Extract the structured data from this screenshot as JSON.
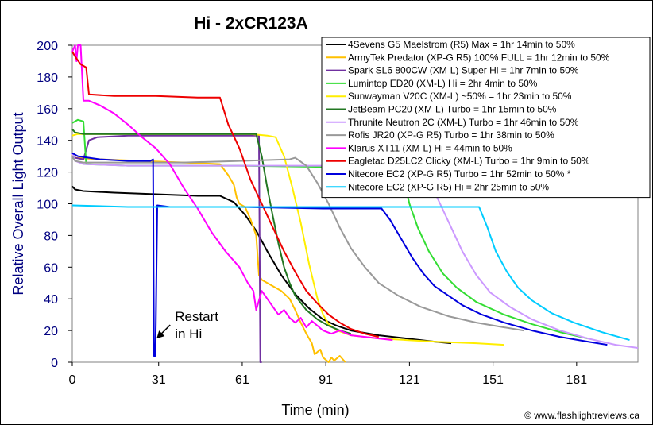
{
  "chart_data": {
    "type": "line",
    "title": "Hi - 2xCR123A",
    "xlabel": "Time (min)",
    "ylabel": "Relative Overall Light Output",
    "xlim": [
      0,
      203
    ],
    "ylim": [
      0,
      200
    ],
    "xticks": [
      0,
      31,
      61,
      91,
      121,
      151,
      181
    ],
    "yticks": [
      0,
      20,
      40,
      60,
      80,
      100,
      120,
      140,
      160,
      180,
      200
    ],
    "grid": false,
    "legend_position": "top-right",
    "annotation": {
      "text_line1": "Restart",
      "text_line2": "in Hi",
      "points_to": [
        30,
        15
      ]
    },
    "credit": "© www.flashlightreviews.ca",
    "series": [
      {
        "name": "4Sevens G5 Maelstrom (R5) Max = 1hr 14min to 50%",
        "color": "#000000",
        "points": [
          [
            0,
            111
          ],
          [
            1,
            109
          ],
          [
            4,
            108
          ],
          [
            15,
            107
          ],
          [
            30,
            106
          ],
          [
            45,
            105
          ],
          [
            53,
            105
          ],
          [
            58,
            101
          ],
          [
            62,
            93
          ],
          [
            66,
            83
          ],
          [
            70,
            70
          ],
          [
            75,
            55
          ],
          [
            80,
            43
          ],
          [
            85,
            34
          ],
          [
            90,
            27
          ],
          [
            95,
            23
          ],
          [
            100,
            20
          ],
          [
            110,
            17
          ],
          [
            120,
            15
          ],
          [
            130,
            13
          ],
          [
            136,
            12
          ]
        ]
      },
      {
        "name": "ArmyTek Predator (XP-G R5) 100% FULL = 1hr 12min to 50%",
        "color": "#ffc000",
        "points": [
          [
            0,
            131
          ],
          [
            1,
            129
          ],
          [
            10,
            128
          ],
          [
            25,
            127
          ],
          [
            40,
            126
          ],
          [
            53,
            125
          ],
          [
            56,
            118
          ],
          [
            58,
            112
          ],
          [
            59,
            104
          ],
          [
            60,
            100
          ],
          [
            62,
            98
          ],
          [
            64,
            90
          ],
          [
            66,
            80
          ],
          [
            67,
            55
          ],
          [
            68,
            52
          ],
          [
            70,
            50
          ],
          [
            72,
            48
          ],
          [
            75,
            45
          ],
          [
            78,
            40
          ],
          [
            80,
            33
          ],
          [
            82,
            25
          ],
          [
            84,
            18
          ],
          [
            86,
            12
          ],
          [
            87,
            5
          ],
          [
            89,
            8
          ],
          [
            90,
            3
          ],
          [
            92,
            0
          ],
          [
            93,
            3
          ],
          [
            94,
            1
          ],
          [
            96,
            4
          ],
          [
            98,
            0
          ]
        ]
      },
      {
        "name": "Spark SL6 800CW (XM-L) Super Hi = 1hr 7min to 50%",
        "color": "#7030a0",
        "points": [
          [
            0,
            130
          ],
          [
            1,
            129
          ],
          [
            4,
            128
          ],
          [
            6,
            140
          ],
          [
            9,
            142
          ],
          [
            20,
            143
          ],
          [
            40,
            143
          ],
          [
            60,
            143
          ],
          [
            66,
            143
          ],
          [
            67,
            143
          ],
          [
            67.5,
            0
          ],
          [
            68,
            0
          ]
        ]
      },
      {
        "name": "Lumintop ED20 (XM-L) Hi = 2hr 4min to 50%",
        "color": "#33dd33",
        "points": [
          [
            0,
            151
          ],
          [
            2,
            153
          ],
          [
            4,
            152
          ],
          [
            5,
            125
          ],
          [
            20,
            124
          ],
          [
            60,
            124
          ],
          [
            100,
            123
          ],
          [
            118,
            123
          ],
          [
            121,
            100
          ],
          [
            124,
            85
          ],
          [
            128,
            70
          ],
          [
            133,
            56
          ],
          [
            138,
            47
          ],
          [
            145,
            38
          ],
          [
            155,
            30
          ],
          [
            165,
            24
          ],
          [
            175,
            19
          ],
          [
            185,
            15
          ]
        ]
      },
      {
        "name": "Sunwayman V20C (XM-L) ~50% = 1hr 23min to 50%",
        "color": "#ffee00",
        "points": [
          [
            0,
            143
          ],
          [
            2,
            144
          ],
          [
            10,
            144
          ],
          [
            30,
            144
          ],
          [
            50,
            144
          ],
          [
            64,
            144
          ],
          [
            70,
            143
          ],
          [
            73,
            142
          ],
          [
            76,
            130
          ],
          [
            79,
            110
          ],
          [
            82,
            88
          ],
          [
            85,
            62
          ],
          [
            88,
            40
          ],
          [
            90,
            30
          ],
          [
            92,
            24
          ],
          [
            95,
            20
          ],
          [
            100,
            17
          ],
          [
            110,
            15
          ],
          [
            120,
            14
          ],
          [
            130,
            13
          ],
          [
            145,
            12
          ],
          [
            155,
            11
          ]
        ]
      },
      {
        "name": "JetBeam PC20 (XM-L) Turbo = 1hr 15min to 50%",
        "color": "#227722",
        "points": [
          [
            0,
            147
          ],
          [
            1,
            145
          ],
          [
            4,
            144
          ],
          [
            20,
            144
          ],
          [
            40,
            144
          ],
          [
            60,
            144
          ],
          [
            66,
            144
          ],
          [
            68,
            130
          ],
          [
            70,
            110
          ],
          [
            72,
            92
          ],
          [
            74,
            75
          ],
          [
            76,
            60
          ],
          [
            78,
            50
          ],
          [
            80,
            42
          ],
          [
            84,
            33
          ],
          [
            88,
            27
          ],
          [
            92,
            23
          ],
          [
            96,
            20
          ],
          [
            100,
            18
          ]
        ]
      },
      {
        "name": "Thrunite Neutron 2C (XM-L) Turbo = 1hr 46min to 50%",
        "color": "#cc99ff",
        "points": [
          [
            0,
            132
          ],
          [
            1,
            127
          ],
          [
            4,
            125
          ],
          [
            20,
            124
          ],
          [
            60,
            124
          ],
          [
            100,
            124
          ],
          [
            124,
            124
          ],
          [
            128,
            115
          ],
          [
            132,
            100
          ],
          [
            136,
            85
          ],
          [
            140,
            70
          ],
          [
            145,
            55
          ],
          [
            150,
            44
          ],
          [
            157,
            35
          ],
          [
            165,
            27
          ],
          [
            175,
            20
          ],
          [
            185,
            15
          ],
          [
            195,
            11
          ],
          [
            203,
            9
          ]
        ]
      },
      {
        "name": "Rofis JR20 (XP-G R5) Turbo = 1hr 38min to 50%",
        "color": "#999999",
        "points": [
          [
            0,
            130
          ],
          [
            1,
            127
          ],
          [
            4,
            126
          ],
          [
            20,
            126
          ],
          [
            40,
            126
          ],
          [
            60,
            127
          ],
          [
            78,
            128
          ],
          [
            80,
            129
          ],
          [
            84,
            124
          ],
          [
            88,
            113
          ],
          [
            92,
            100
          ],
          [
            96,
            85
          ],
          [
            100,
            72
          ],
          [
            105,
            60
          ],
          [
            110,
            50
          ],
          [
            117,
            42
          ],
          [
            125,
            35
          ],
          [
            135,
            29
          ],
          [
            145,
            25
          ],
          [
            155,
            22
          ],
          [
            162,
            20
          ]
        ]
      },
      {
        "name": "Klarus XT11 (XM-L) Hi = 44min to 50%",
        "color": "#ff00ff",
        "points": [
          [
            0,
            196
          ],
          [
            1,
            200
          ],
          [
            1.5,
            190
          ],
          [
            2,
            200
          ],
          [
            3,
            200
          ],
          [
            4,
            165
          ],
          [
            6,
            165
          ],
          [
            10,
            162
          ],
          [
            15,
            157
          ],
          [
            20,
            150
          ],
          [
            25,
            142
          ],
          [
            30,
            135
          ],
          [
            35,
            125
          ],
          [
            40,
            110
          ],
          [
            45,
            97
          ],
          [
            50,
            82
          ],
          [
            55,
            70
          ],
          [
            60,
            60
          ],
          [
            63,
            50
          ],
          [
            65,
            45
          ],
          [
            66,
            33
          ],
          [
            68,
            45
          ],
          [
            70,
            40
          ],
          [
            72,
            35
          ],
          [
            74,
            30
          ],
          [
            76,
            33
          ],
          [
            78,
            28
          ],
          [
            80,
            25
          ],
          [
            82,
            28
          ],
          [
            84,
            22
          ],
          [
            86,
            26
          ],
          [
            88,
            23
          ],
          [
            90,
            20
          ],
          [
            93,
            18
          ],
          [
            96,
            20
          ],
          [
            100,
            17
          ],
          [
            105,
            16
          ],
          [
            110,
            15
          ],
          [
            115,
            14
          ]
        ]
      },
      {
        "name": "Eagletac D25LC2 Clicky (XM-L) Turbo = 1hr 9min to 50%",
        "color": "#ee0000",
        "points": [
          [
            0,
            196
          ],
          [
            1,
            193
          ],
          [
            3,
            188
          ],
          [
            5,
            186
          ],
          [
            6,
            169
          ],
          [
            15,
            168
          ],
          [
            30,
            168
          ],
          [
            45,
            167
          ],
          [
            53,
            167
          ],
          [
            56,
            150
          ],
          [
            60,
            135
          ],
          [
            64,
            115
          ],
          [
            68,
            100
          ],
          [
            72,
            85
          ],
          [
            76,
            70
          ],
          [
            80,
            57
          ],
          [
            84,
            45
          ],
          [
            88,
            37
          ],
          [
            92,
            30
          ],
          [
            96,
            25
          ],
          [
            100,
            21
          ],
          [
            105,
            18
          ],
          [
            110,
            16
          ]
        ]
      },
      {
        "name": "Nitecore EC2 (XP-G R5) Turbo = 1hr 52min to 50% *",
        "color": "#0000dd",
        "points": [
          [
            0,
            132
          ],
          [
            2,
            130
          ],
          [
            10,
            128
          ],
          [
            20,
            127
          ],
          [
            28,
            127
          ],
          [
            29,
            128
          ],
          [
            29.3,
            4
          ],
          [
            29.8,
            4
          ],
          [
            30,
            25
          ],
          [
            30.5,
            99
          ],
          [
            35,
            98
          ],
          [
            60,
            98
          ],
          [
            90,
            97
          ],
          [
            111,
            97
          ],
          [
            114,
            90
          ],
          [
            118,
            78
          ],
          [
            122,
            66
          ],
          [
            126,
            56
          ],
          [
            130,
            48
          ],
          [
            135,
            42
          ],
          [
            140,
            36
          ],
          [
            147,
            30
          ],
          [
            155,
            25
          ],
          [
            165,
            20
          ],
          [
            175,
            16
          ],
          [
            185,
            13
          ],
          [
            192,
            11
          ]
        ]
      },
      {
        "name": "Nitecore EC2 (XP-G R5) Hi = 2hr 25min to 50%",
        "color": "#00ccff",
        "points": [
          [
            0,
            99
          ],
          [
            20,
            98
          ],
          [
            60,
            98
          ],
          [
            100,
            98
          ],
          [
            140,
            98
          ],
          [
            146,
            98
          ],
          [
            149,
            85
          ],
          [
            152,
            70
          ],
          [
            156,
            57
          ],
          [
            160,
            47
          ],
          [
            165,
            39
          ],
          [
            172,
            31
          ],
          [
            180,
            25
          ],
          [
            190,
            19
          ],
          [
            196,
            16
          ],
          [
            200,
            14
          ]
        ]
      }
    ]
  }
}
